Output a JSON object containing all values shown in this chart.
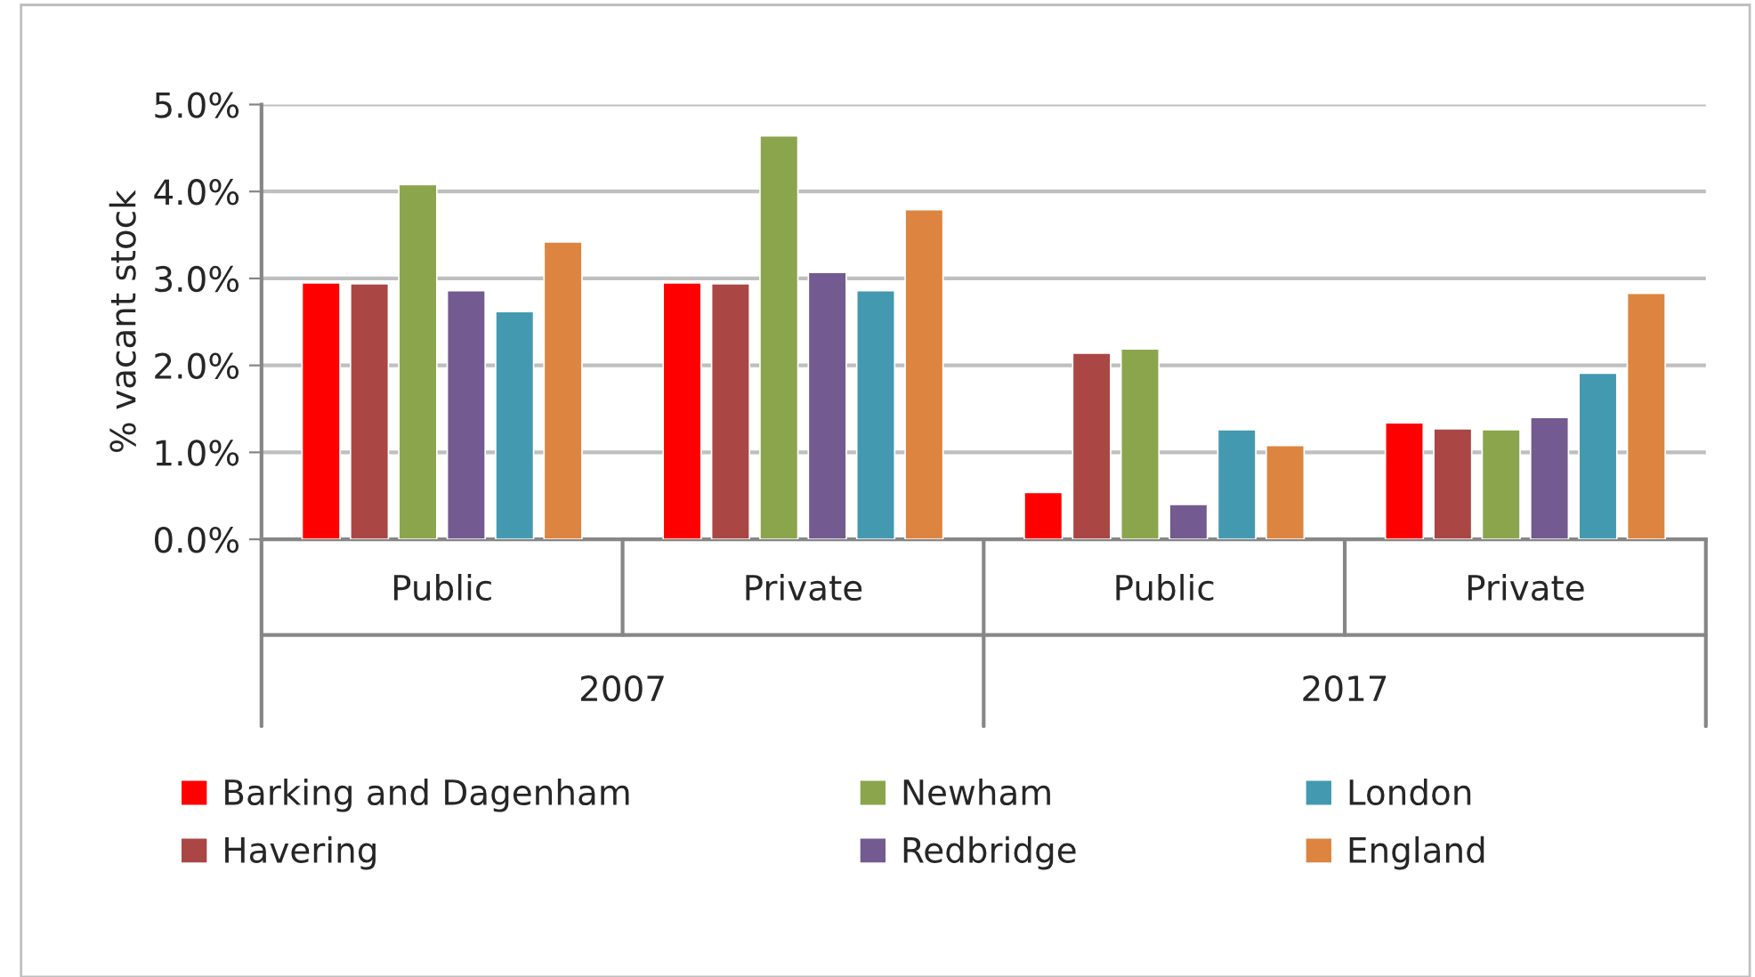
{
  "chart_data": {
    "type": "bar",
    "ylabel": "% vacant stock",
    "categories": [
      "Public",
      "Private",
      "Public",
      "Private"
    ],
    "annotations": [
      "2007",
      "2017"
    ],
    "series": [
      {
        "name": "Barking and Dagenham",
        "color": "#ff0000",
        "values": [
          2.95,
          2.95,
          0.54,
          1.34
        ]
      },
      {
        "name": "Havering",
        "color": "#aa4644",
        "values": [
          2.94,
          2.94,
          2.14,
          1.27
        ]
      },
      {
        "name": "Newham",
        "color": "#8aa54c",
        "values": [
          4.08,
          4.64,
          2.19,
          1.26
        ]
      },
      {
        "name": "Redbridge",
        "color": "#735a90",
        "values": [
          2.86,
          3.07,
          0.4,
          1.4
        ]
      },
      {
        "name": "London",
        "color": "#4399b0",
        "values": [
          2.62,
          2.86,
          1.26,
          1.91
        ]
      },
      {
        "name": "England",
        "color": "#dd8440",
        "values": [
          3.42,
          3.79,
          1.08,
          2.83
        ]
      }
    ],
    "ylim": [
      0,
      5
    ],
    "yticks": [
      {
        "value": 0,
        "label": "0.0%"
      },
      {
        "value": 1,
        "label": "1.0%"
      },
      {
        "value": 2,
        "label": "2.0%"
      },
      {
        "value": 3,
        "label": "3.0%"
      },
      {
        "value": 4,
        "label": "4.0%"
      },
      {
        "value": 5,
        "label": "5.0%"
      }
    ],
    "grid": "y",
    "legend": "bottom"
  }
}
